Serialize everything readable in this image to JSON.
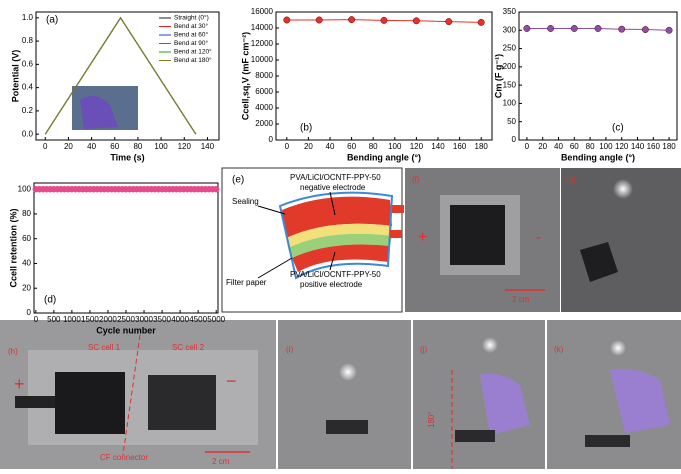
{
  "chart_data": [
    {
      "type": "line",
      "panel_label": "(a)",
      "xlabel": "Time (s)",
      "ylabel": "Potential (V)",
      "xlim": [
        -8,
        150
      ],
      "ylim": [
        -0.05,
        1.05
      ],
      "xticks": [
        0,
        20,
        40,
        60,
        80,
        100,
        120,
        140
      ],
      "yticks": [
        {
          "value": 0,
          "label": "0.0"
        },
        {
          "value": 0.2,
          "label": "0.2"
        },
        {
          "value": 0.4,
          "label": "0.4"
        },
        {
          "value": 0.6,
          "label": "0.6"
        },
        {
          "value": 0.8,
          "label": "0.8"
        },
        {
          "value": 1.0,
          "label": "1.0"
        }
      ],
      "x": [
        0,
        65,
        130
      ],
      "legend": "upper right",
      "series": [
        {
          "name": "Straight (0°)",
          "color": "#222222",
          "values": [
            0,
            1.0,
            0
          ]
        },
        {
          "name": "Bend at 30°",
          "color": "#e02020",
          "values": [
            0,
            1.0,
            0
          ]
        },
        {
          "name": "Bend at 60°",
          "color": "#2040d0",
          "values": [
            0,
            1.0,
            0
          ]
        },
        {
          "name": "Bend at 90°",
          "color": "#b030b0",
          "values": [
            0,
            1.0,
            0
          ]
        },
        {
          "name": "Bend at 120°",
          "color": "#20a020",
          "values": [
            0,
            1.0,
            0
          ]
        },
        {
          "name": "Bend at 180°",
          "color": "#808020",
          "values": [
            0,
            1.0,
            0
          ]
        }
      ]
    },
    {
      "type": "line",
      "panel_label": "(b)",
      "xlabel": "Bending angle (°)",
      "ylabel": "Ccell,sq,V (mF cm⁻²)",
      "xlim": [
        -10,
        190
      ],
      "ylim": [
        0,
        16000
      ],
      "xticks": [
        0,
        20,
        40,
        60,
        80,
        100,
        120,
        140,
        160,
        180
      ],
      "yticks": [
        0,
        2000,
        4000,
        6000,
        8000,
        10000,
        12000,
        14000,
        16000
      ],
      "x": [
        0,
        30,
        60,
        90,
        120,
        150,
        180
      ],
      "series": [
        {
          "name": "Ccell,sq,V",
          "color": "#e8302a",
          "values": [
            15000,
            15000,
            15050,
            14950,
            14900,
            14800,
            14700
          ]
        }
      ]
    },
    {
      "type": "line",
      "panel_label": "(c)",
      "xlabel": "Bending angle (°)",
      "ylabel": "Cm (F g⁻¹)",
      "xlim": [
        -10,
        190
      ],
      "ylim": [
        0,
        350
      ],
      "xticks": [
        0,
        20,
        40,
        60,
        80,
        100,
        120,
        140,
        160,
        180
      ],
      "yticks": [
        0,
        50,
        100,
        150,
        200,
        250,
        300,
        350
      ],
      "x": [
        0,
        30,
        60,
        90,
        120,
        150,
        180
      ],
      "series": [
        {
          "name": "Cm",
          "color": "#8a4fa6",
          "values": [
            305,
            305,
            305,
            305,
            303,
            302,
            300
          ]
        }
      ]
    },
    {
      "type": "scatter",
      "panel_label": "(d)",
      "xlabel": "Cycle number",
      "ylabel": "Ccell retention (%)",
      "xlim": [
        -50,
        5050
      ],
      "ylim": [
        0,
        105
      ],
      "xticks": [
        0,
        500,
        1000,
        1500,
        2000,
        2500,
        3000,
        3500,
        4000,
        4500,
        5000
      ],
      "yticks": [
        0,
        20,
        40,
        60,
        80,
        100
      ],
      "x": [
        0,
        100,
        200,
        300,
        400,
        500,
        600,
        700,
        800,
        900,
        1000,
        1100,
        1200,
        1300,
        1400,
        1500,
        1600,
        1700,
        1800,
        1900,
        2000,
        2100,
        2200,
        2300,
        2400,
        2500,
        2600,
        2700,
        2800,
        2900,
        3000,
        3100,
        3200,
        3300,
        3400,
        3500,
        3600,
        3700,
        3800,
        3900,
        4000,
        4100,
        4200,
        4300,
        4400,
        4500,
        4600,
        4700,
        4800,
        4900,
        5000
      ],
      "series": [
        {
          "name": "Ccell retention",
          "color": "#e64a8a",
          "values": [
            100,
            100,
            100,
            100,
            100,
            100,
            100,
            100,
            100,
            100,
            100,
            100,
            100,
            100,
            100,
            100,
            100,
            100,
            100,
            100,
            100,
            100,
            100,
            100,
            100,
            100,
            100,
            100,
            100,
            100,
            100,
            100,
            100,
            100,
            100,
            100,
            100,
            100,
            100,
            100,
            100,
            100,
            100,
            100,
            100,
            100,
            100,
            100,
            100,
            100,
            100
          ]
        }
      ]
    }
  ],
  "diagram": {
    "label": "(e)",
    "top": "PVA/LiCl/OCNTF-PPY-50",
    "top2": "negative electrode",
    "sealing": "Sealing",
    "filter": "Filter paper",
    "bottom": "PVA/LiCl/OCNTF-PPY-50",
    "bottom2": "positive electrode"
  },
  "photos": {
    "f": {
      "label": "(f)",
      "plus": "+",
      "minus": "-",
      "scale": "2 cm"
    },
    "g": {
      "label": "(g)"
    },
    "h": {
      "label": "(h)",
      "cell1": "SC cell 1",
      "cell2": "SC cell 2",
      "plus": "+",
      "minus": "−",
      "connector": "CF connector",
      "scale": "2 cm"
    },
    "i": {
      "label": "(i)"
    },
    "j": {
      "label": "(j)",
      "angle": "180°"
    },
    "k": {
      "label": "(k)"
    }
  }
}
